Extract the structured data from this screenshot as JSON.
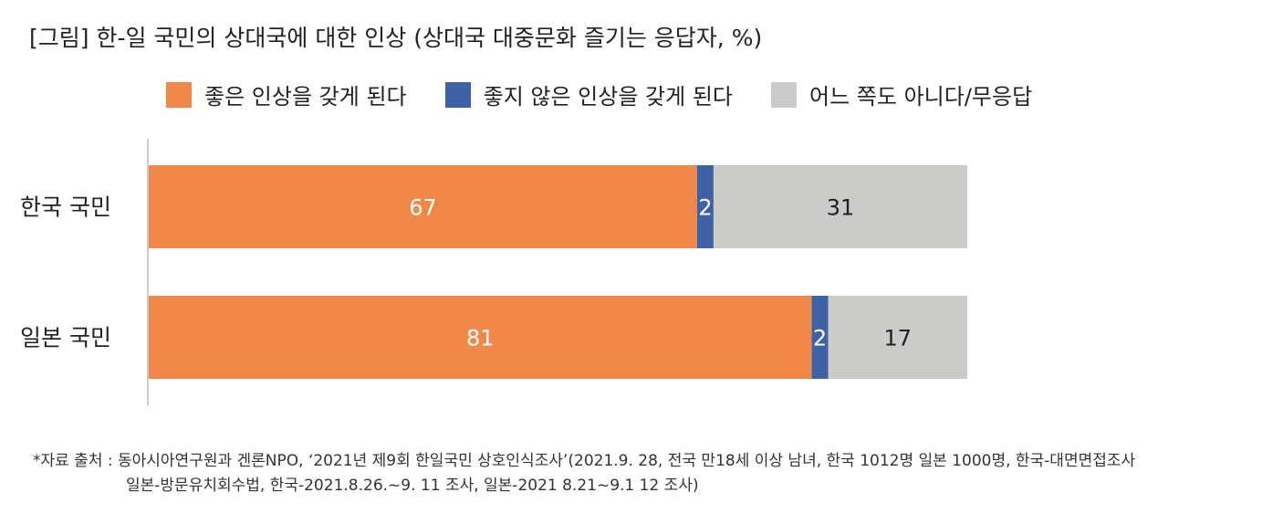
{
  "title": "[그림] 한-일 국민의 상대국에 대한 인상 (상대국 대중문화 즐기는 응답자, %)",
  "chart_data": {
    "type": "bar",
    "orientation": "horizontal",
    "stacked": true,
    "categories": [
      "한국 국민",
      "일본 국민"
    ],
    "series": [
      {
        "name": "좋은 인상을 갖게 된다",
        "values": [
          67,
          81
        ],
        "color": "#F0884A",
        "label_color": "#ffffff"
      },
      {
        "name": "좋지 않은 인상을 갖게 된다",
        "values": [
          2,
          2
        ],
        "color": "#3F61A6",
        "label_color": "#ffffff"
      },
      {
        "name": "어느 쪽도 아니다/무응답",
        "values": [
          31,
          17
        ],
        "color": "#CBCBC9",
        "label_color": "#222222"
      }
    ],
    "xlim": [
      0,
      100
    ],
    "legend_position": "top",
    "grid": false
  },
  "note": {
    "line1": "*자료 출처 : 동아시아연구원과 겐론NPO, ‘2021년 제9회 한일국민 상호인식조사’(2021.9. 28, 전국 만18세 이상 남녀, 한국 1012명 일본 1000명, 한국-대면면접조사",
    "line2": "일본-방문유치회수법, 한국-2021.8.26.~9. 11 조사, 일본-2021 8.21~9.1 12 조사)"
  }
}
